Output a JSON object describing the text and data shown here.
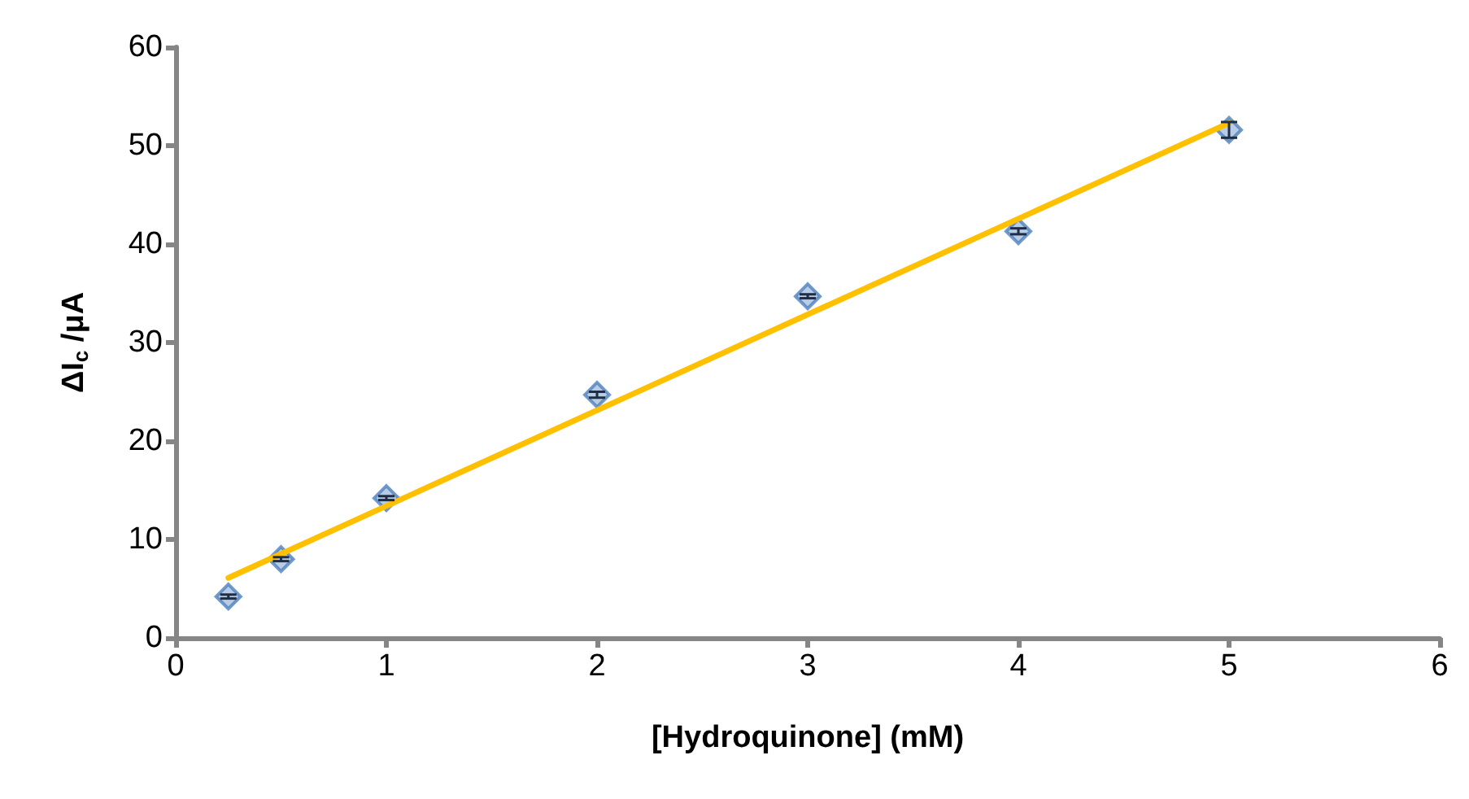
{
  "chart_data": {
    "type": "scatter",
    "xlabel": "[Hydroquinone] (mM)",
    "ylabel": "ΔI$_{c}$ /μA",
    "xlim": [
      0,
      6
    ],
    "xticks": [
      0,
      1,
      2,
      3,
      4,
      5,
      6
    ],
    "ylim": [
      0,
      60
    ],
    "yticks": [
      0,
      10,
      20,
      30,
      40,
      50,
      60
    ],
    "grid": false,
    "marker": "diamond",
    "series": [
      {
        "color": "#4f81bd",
        "x": [
          0.25,
          0.5,
          1,
          2,
          3,
          4,
          5
        ],
        "values": [
          4.2,
          8.0,
          14.2,
          24.7,
          34.7,
          41.3,
          51.6
        ],
        "errors": [
          0.2,
          0.2,
          0.2,
          0.3,
          0.2,
          0.3,
          0.8
        ]
      },
      {
        "type": "line",
        "color": "#ffc000",
        "x": [
          0.25,
          5
        ],
        "values": [
          6.1,
          52.3
        ],
        "marker": "none",
        "line_style": "solid"
      }
    ]
  }
}
